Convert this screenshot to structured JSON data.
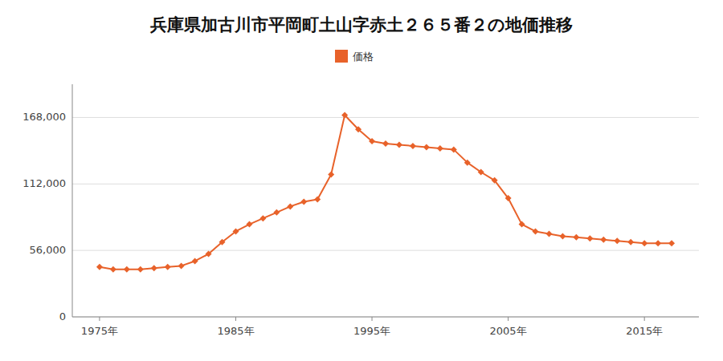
{
  "chart_data": {
    "type": "line",
    "title": "兵庫県加古川市平岡町土山字赤土２６５番２の地価推移",
    "x": [
      1975,
      1976,
      1977,
      1978,
      1979,
      1980,
      1981,
      1982,
      1983,
      1984,
      1985,
      1986,
      1987,
      1988,
      1989,
      1990,
      1991,
      1992,
      1993,
      1994,
      1995,
      1996,
      1997,
      1998,
      1999,
      2000,
      2001,
      2002,
      2003,
      2004,
      2005,
      2006,
      2007,
      2008,
      2009,
      2010,
      2011,
      2012,
      2013,
      2014,
      2015,
      2016,
      2017
    ],
    "series": [
      {
        "name": "価格",
        "color": "#e8622a",
        "marker": "diamond",
        "values": [
          42000,
          40000,
          40000,
          40000,
          41000,
          42000,
          43000,
          47000,
          53000,
          63000,
          72000,
          78000,
          83000,
          88000,
          93000,
          97000,
          99000,
          120000,
          170000,
          158000,
          148000,
          146000,
          145000,
          144000,
          143000,
          142000,
          141000,
          130000,
          122000,
          115000,
          100000,
          78000,
          72000,
          70000,
          68000,
          67000,
          66000,
          65000,
          64000,
          63000,
          62000,
          62000,
          62000
        ]
      }
    ],
    "xlim": [
      1973,
      2019
    ],
    "xticks": [
      {
        "value": 1975,
        "label": "1975年"
      },
      {
        "value": 1985,
        "label": "1985年"
      },
      {
        "value": 1995,
        "label": "1995年"
      },
      {
        "value": 2005,
        "label": "2005年"
      },
      {
        "value": 2015,
        "label": "2015年"
      }
    ],
    "ylim": [
      0,
      196000
    ],
    "yticks": [
      0,
      {
        "value": 56000,
        "label": "56,000"
      },
      {
        "value": 112000,
        "label": "112,000"
      },
      {
        "value": 168000,
        "label": "168,000"
      }
    ],
    "grid": true,
    "legend": "top"
  }
}
